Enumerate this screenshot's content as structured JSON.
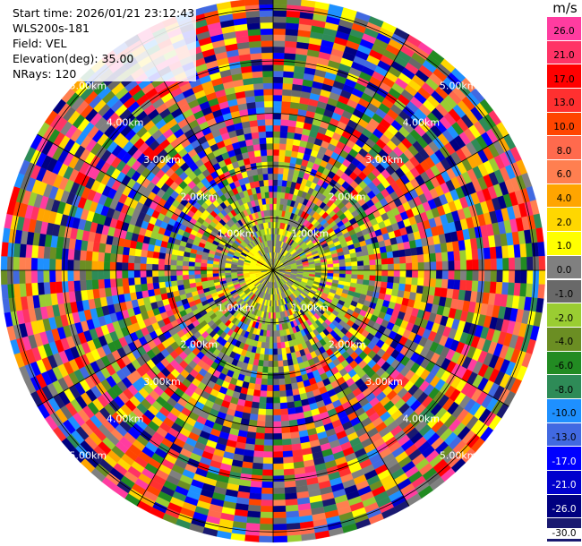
{
  "info": {
    "start_time": "Start time: 2026/01/21 23:12:43",
    "device": "WLS200s-181",
    "field": "Field: VEL",
    "elevation": "Elevation(deg): 35.00",
    "nrays": "NRays: 120"
  },
  "colorbar": {
    "unit": "m/s",
    "labels": [
      "26.0",
      "21.0",
      "17.0",
      "13.0",
      "10.0",
      "8.0",
      "6.0",
      "4.0",
      "2.0",
      "1.0",
      "0.0",
      "-1.0",
      "-2.0",
      "-4.0",
      "-6.0",
      "-8.0",
      "-10.0",
      "-13.0",
      "-17.0",
      "-21.0",
      "-26.0",
      "-30.0"
    ],
    "colors": [
      "#ff3ca0",
      "#ff3366",
      "#ff0000",
      "#ff3030",
      "#ff4500",
      "#ff6a4d",
      "#ff7f50",
      "#ffa500",
      "#ffd700",
      "#ffff00",
      "#808080",
      "#696969",
      "#9acd32",
      "#6b8e23",
      "#228b22",
      "#2e8b57",
      "#1e90ff",
      "#4169e1",
      "#0000ff",
      "#0000cd",
      "#000080",
      "#191970"
    ]
  },
  "chart_data": {
    "type": "heatmap",
    "subtype": "PPI radial velocity",
    "field": "VEL",
    "units": "m/s",
    "nrays": 120,
    "range_rings_km": [
      1,
      2,
      3,
      4,
      5
    ],
    "range_ring_labels": [
      "1.00km",
      "2.00km",
      "3.00km",
      "4.00km",
      "5.00km"
    ],
    "max_range_km": 5.2,
    "azimuth_lines_deg": [
      0,
      30,
      60,
      90,
      120,
      150,
      180,
      210,
      240,
      270,
      300,
      330
    ],
    "gates_per_ray": 45,
    "note_fields": {
      "inner_dominant": [
        "0.0",
        "-1.0",
        "-2.0",
        "1.0"
      ],
      "outer_dominant": "noise (all classes)"
    },
    "colormap_bounds": [
      -30,
      -26,
      -21,
      -17,
      -13,
      -10,
      -8,
      -6,
      -4,
      -2,
      -1,
      0,
      1,
      2,
      4,
      6,
      8,
      10,
      13,
      17,
      21,
      26,
      30
    ]
  }
}
